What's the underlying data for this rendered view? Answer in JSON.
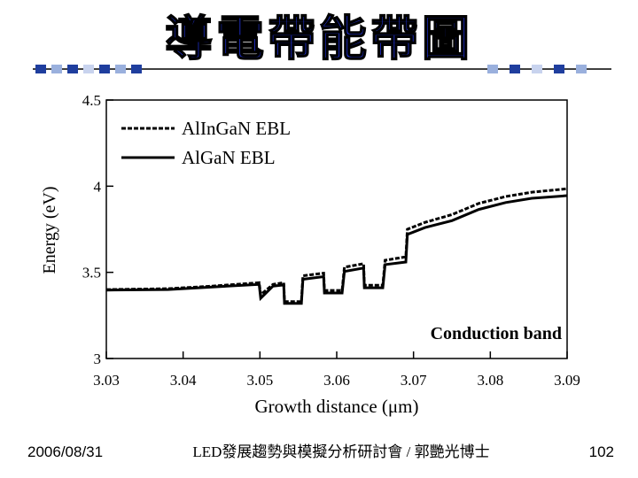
{
  "slide": {
    "title": "導電帶能帶圖",
    "footer_left": "2006/08/31",
    "footer_center": "LED發展趨勢與模擬分析研討會 / 郭艷光博士",
    "page_number": "102"
  },
  "chart_data": {
    "type": "line",
    "x_label": "Growth distance (μm)",
    "y_label": "Energy (eV)",
    "annotation": "Conduction band",
    "x": [
      3.03,
      3.038,
      3.0438,
      3.0499,
      3.0501,
      3.0517,
      3.0531,
      3.0532,
      3.0554,
      3.0556,
      3.0583,
      3.0584,
      3.0607,
      3.061,
      3.0635,
      3.0636,
      3.066,
      3.0663,
      3.069,
      3.0692,
      3.0715,
      3.075,
      3.0785,
      3.082,
      3.0854,
      3.09
    ],
    "series": [
      {
        "name": "AlInGaN EBL",
        "color": "#000000",
        "dash": true,
        "values": [
          3.4,
          3.405,
          3.42,
          3.44,
          3.37,
          3.43,
          3.44,
          3.33,
          3.33,
          3.48,
          3.495,
          3.395,
          3.395,
          3.53,
          3.55,
          3.425,
          3.425,
          3.57,
          3.59,
          3.75,
          3.79,
          3.835,
          3.9,
          3.94,
          3.965,
          3.985
        ]
      },
      {
        "name": "AlGaN EBL",
        "color": "#000000",
        "dash": false,
        "values": [
          3.397,
          3.4,
          3.415,
          3.43,
          3.35,
          3.42,
          3.427,
          3.32,
          3.32,
          3.46,
          3.475,
          3.38,
          3.38,
          3.505,
          3.525,
          3.41,
          3.41,
          3.545,
          3.56,
          3.72,
          3.76,
          3.8,
          3.865,
          3.905,
          3.93,
          3.945
        ]
      }
    ],
    "xlim": [
      3.03,
      3.09
    ],
    "xticks": [
      3.03,
      3.04,
      3.05,
      3.06,
      3.07,
      3.08,
      3.09
    ],
    "ylim": [
      3,
      4.5
    ],
    "yticks": [
      3,
      3.5,
      4,
      4.5
    ],
    "legend": "upper left"
  }
}
